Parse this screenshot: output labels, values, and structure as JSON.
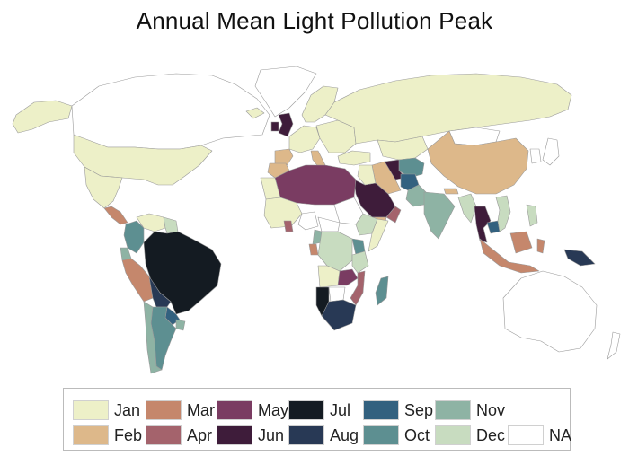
{
  "title": "Annual Mean Light Pollution Peak",
  "map_data": {
    "type": "choropleth",
    "variable": "month of annual mean light pollution peak",
    "legend_placement": "bottom",
    "ocean_color": "#ffffff",
    "border_color": "#9a9a9a",
    "categories": [
      {
        "key": "Jan",
        "label": "Jan",
        "color": "#edf0c8"
      },
      {
        "key": "Feb",
        "label": "Feb",
        "color": "#ddb88a"
      },
      {
        "key": "Mar",
        "label": "Mar",
        "color": "#c5876c"
      },
      {
        "key": "Apr",
        "label": "Apr",
        "color": "#a4636c"
      },
      {
        "key": "May",
        "label": "May",
        "color": "#7a3c62"
      },
      {
        "key": "Jun",
        "label": "Jun",
        "color": "#3e1c3a"
      },
      {
        "key": "Jul",
        "label": "Jul",
        "color": "#141b22"
      },
      {
        "key": "Aug",
        "label": "Aug",
        "color": "#283955"
      },
      {
        "key": "Sep",
        "label": "Sep",
        "color": "#33617f"
      },
      {
        "key": "Oct",
        "label": "Oct",
        "color": "#5d8f91"
      },
      {
        "key": "Nov",
        "label": "Nov",
        "color": "#8eb3a4"
      },
      {
        "key": "Dec",
        "label": "Dec",
        "color": "#c8dcc0"
      },
      {
        "key": "NA",
        "label": "NA",
        "color": "#ffffff"
      }
    ],
    "regions": [
      {
        "name": "Greenland",
        "value": "NA"
      },
      {
        "name": "Alaska",
        "value": "Jan"
      },
      {
        "name": "Canada",
        "value": "NA"
      },
      {
        "name": "United States",
        "value": "Jan"
      },
      {
        "name": "Mexico",
        "value": "Jan"
      },
      {
        "name": "Central America",
        "value": "Mar"
      },
      {
        "name": "Colombia",
        "value": "Oct"
      },
      {
        "name": "Venezuela",
        "value": "Jan"
      },
      {
        "name": "Guyana",
        "value": "Dec"
      },
      {
        "name": "Ecuador",
        "value": "Nov"
      },
      {
        "name": "Peru",
        "value": "Mar"
      },
      {
        "name": "Brazil",
        "value": "Jul"
      },
      {
        "name": "Bolivia",
        "value": "Aug"
      },
      {
        "name": "Paraguay",
        "value": "Sep"
      },
      {
        "name": "Uruguay",
        "value": "Nov"
      },
      {
        "name": "Argentina",
        "value": "Oct"
      },
      {
        "name": "Chile",
        "value": "Nov"
      },
      {
        "name": "Iceland",
        "value": "Jan"
      },
      {
        "name": "United Kingdom",
        "value": "Jun"
      },
      {
        "name": "Ireland",
        "value": "Jun"
      },
      {
        "name": "Scandinavia",
        "value": "Jan"
      },
      {
        "name": "Western Europe",
        "value": "Jan"
      },
      {
        "name": "Iberia",
        "value": "Feb"
      },
      {
        "name": "Italy",
        "value": "Feb"
      },
      {
        "name": "Eastern Europe",
        "value": "Jan"
      },
      {
        "name": "Russia",
        "value": "Jan"
      },
      {
        "name": "Turkey",
        "value": "Jan"
      },
      {
        "name": "Kazakhstan",
        "value": "Jan"
      },
      {
        "name": "Mongolia",
        "value": "NA"
      },
      {
        "name": "China",
        "value": "Feb"
      },
      {
        "name": "Central Asia",
        "value": "Oct"
      },
      {
        "name": "Caspian region",
        "value": "Jun"
      },
      {
        "name": "Iran",
        "value": "Feb"
      },
      {
        "name": "Afghanistan",
        "value": "Sep"
      },
      {
        "name": "Pakistan",
        "value": "Nov"
      },
      {
        "name": "India",
        "value": "Nov"
      },
      {
        "name": "Nepal",
        "value": "Feb"
      },
      {
        "name": "Myanmar",
        "value": "Dec"
      },
      {
        "name": "Thailand",
        "value": "Jun"
      },
      {
        "name": "Cambodia",
        "value": "Sep"
      },
      {
        "name": "Vietnam",
        "value": "Dec"
      },
      {
        "name": "Philippines",
        "value": "Dec"
      },
      {
        "name": "Korea",
        "value": "NA"
      },
      {
        "name": "Japan",
        "value": "NA"
      },
      {
        "name": "Saudi Arabia",
        "value": "Jun"
      },
      {
        "name": "Oman",
        "value": "Apr"
      },
      {
        "name": "Yemen",
        "value": "Feb"
      },
      {
        "name": "Iraq",
        "value": "Jan"
      },
      {
        "name": "North Africa",
        "value": "May"
      },
      {
        "name": "Morocco",
        "value": "Feb"
      },
      {
        "name": "Western Sahara",
        "value": "Jan"
      },
      {
        "name": "Sudan",
        "value": "NA"
      },
      {
        "name": "Ethiopia",
        "value": "Dec"
      },
      {
        "name": "Somalia",
        "value": "Jan"
      },
      {
        "name": "West Africa",
        "value": "Jan"
      },
      {
        "name": "Nigeria",
        "value": "NA"
      },
      {
        "name": "Ghana",
        "value": "Apr"
      },
      {
        "name": "Central African Rep.",
        "value": "NA"
      },
      {
        "name": "Cameroon",
        "value": "Nov"
      },
      {
        "name": "Gabon",
        "value": "Mar"
      },
      {
        "name": "DR Congo",
        "value": "Dec"
      },
      {
        "name": "Kenya",
        "value": "Oct"
      },
      {
        "name": "Tanzania",
        "value": "Dec"
      },
      {
        "name": "Angola",
        "value": "Jan"
      },
      {
        "name": "Zambia",
        "value": "May"
      },
      {
        "name": "Mozambique",
        "value": "Apr"
      },
      {
        "name": "Namibia",
        "value": "Jul"
      },
      {
        "name": "Botswana",
        "value": "NA"
      },
      {
        "name": "South Africa",
        "value": "Aug"
      },
      {
        "name": "Madagascar",
        "value": "Oct"
      },
      {
        "name": "Indonesia",
        "value": "Mar"
      },
      {
        "name": "Borneo",
        "value": "Mar"
      },
      {
        "name": "Sulawesi",
        "value": "Mar"
      },
      {
        "name": "Papua New Guinea",
        "value": "Aug"
      },
      {
        "name": "Australia",
        "value": "NA"
      },
      {
        "name": "New Zealand",
        "value": "NA"
      }
    ]
  }
}
